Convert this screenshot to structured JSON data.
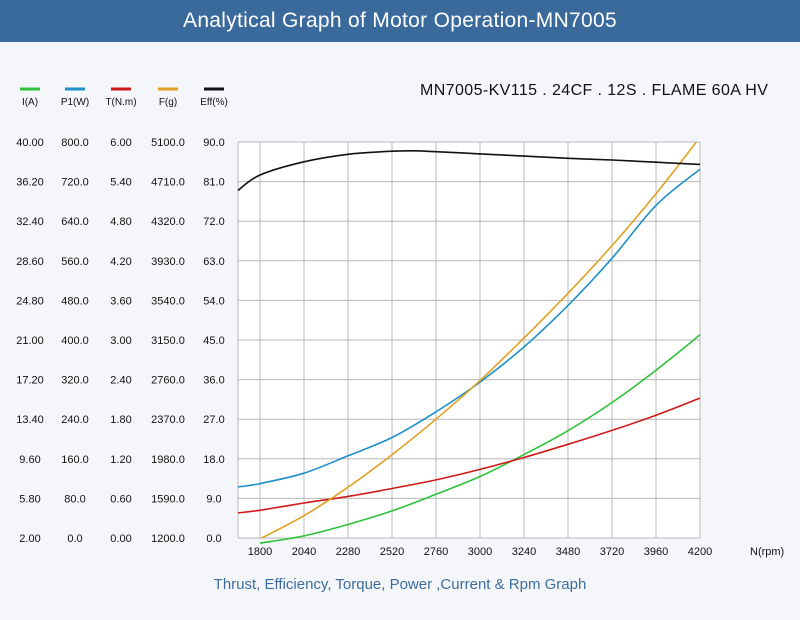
{
  "header": {
    "title": "Analytical Graph of Motor Operation-MN7005"
  },
  "model_label": "MN7005-KV115 . 24CF . 12S . FLAME 60A HV",
  "footer": {
    "caption": "Thrust, Efficiency, Torque, Power ,Current & Rpm Graph"
  },
  "chart_data": {
    "type": "line",
    "title": "Analytical Graph of Motor Operation-MN7005",
    "xlabel": "N(rpm)",
    "xlim": [
      1680,
      4200
    ],
    "x_ticks": [
      "1800",
      "2040",
      "2280",
      "2520",
      "2760",
      "3000",
      "3240",
      "3480",
      "3720",
      "3960",
      "4200"
    ],
    "grid": true,
    "legend_position": "top-left",
    "axes": [
      {
        "id": "I",
        "label": "I(A)",
        "min": 2.0,
        "max": 40.0,
        "ticks": [
          "40.00",
          "36.20",
          "32.40",
          "28.60",
          "24.80",
          "21.00",
          "17.20",
          "13.40",
          "9.60",
          "5.80",
          "2.00"
        ]
      },
      {
        "id": "P1",
        "label": "P1(W)",
        "min": 0,
        "max": 800,
        "ticks": [
          "800.0",
          "720.0",
          "640.0",
          "560.0",
          "480.0",
          "400.0",
          "320.0",
          "240.0",
          "160.0",
          "80.0",
          "0.0"
        ]
      },
      {
        "id": "T",
        "label": "T(N.m)",
        "min": 0,
        "max": 6.0,
        "ticks": [
          "6.00",
          "5.40",
          "4.80",
          "4.20",
          "3.60",
          "3.00",
          "2.40",
          "1.80",
          "1.20",
          "0.60",
          "0.00"
        ]
      },
      {
        "id": "F",
        "label": "F(g)",
        "min": 1200,
        "max": 5100,
        "ticks": [
          "5100.0",
          "4710.0",
          "4320.0",
          "3930.0",
          "3540.0",
          "3150.0",
          "2760.0",
          "2370.0",
          "1980.0",
          "1590.0",
          "1200.0"
        ]
      },
      {
        "id": "Eff",
        "label": "Eff(%)",
        "min": 0,
        "max": 90,
        "ticks": [
          "90.0",
          "81.0",
          "72.0",
          "63.0",
          "54.0",
          "45.0",
          "36.0",
          "27.0",
          "18.0",
          "9.0",
          "0.0"
        ]
      }
    ],
    "series": [
      {
        "name": "I(A)",
        "axis": "I",
        "color": "#2ec13a",
        "x": [
          1800,
          2040,
          2280,
          2520,
          2760,
          3000,
          3240,
          3480,
          3720,
          3960,
          4200
        ],
        "y": [
          1.5,
          2.2,
          3.3,
          4.6,
          6.2,
          7.9,
          10.0,
          12.3,
          15.0,
          18.1,
          21.5
        ]
      },
      {
        "name": "P1(W)",
        "axis": "P1",
        "color": "#1e8fc8",
        "x": [
          1680,
          1800,
          2040,
          2280,
          2520,
          2760,
          3000,
          3240,
          3480,
          3720,
          3960,
          4200
        ],
        "y": [
          103,
          110,
          131,
          166,
          203,
          255,
          315,
          386,
          470,
          565,
          672,
          745
        ]
      },
      {
        "name": "T(N.m)",
        "axis": "T",
        "color": "#d01a1a",
        "x": [
          1680,
          1800,
          2040,
          2280,
          2520,
          2760,
          3000,
          3240,
          3480,
          3720,
          3960,
          4200
        ],
        "y": [
          0.38,
          0.42,
          0.53,
          0.63,
          0.75,
          0.88,
          1.04,
          1.22,
          1.42,
          1.63,
          1.86,
          2.12
        ]
      },
      {
        "name": "F(g)",
        "axis": "F",
        "color": "#e0a020",
        "x": [
          1810,
          2040,
          2280,
          2520,
          2760,
          3000,
          3240,
          3480,
          3720,
          3960,
          4180
        ],
        "y": [
          1200,
          1420,
          1700,
          2020,
          2370,
          2750,
          3170,
          3610,
          4080,
          4590,
          5100
        ]
      },
      {
        "name": "Eff(%)",
        "axis": "Eff",
        "color": "#111111",
        "x": [
          1680,
          1800,
          2040,
          2280,
          2520,
          2640,
          2760,
          3000,
          3240,
          3480,
          3720,
          3960,
          4200
        ],
        "y": [
          79.0,
          82.5,
          85.5,
          87.2,
          87.9,
          88.0,
          87.8,
          87.3,
          86.8,
          86.3,
          85.9,
          85.4,
          84.9
        ]
      }
    ]
  }
}
